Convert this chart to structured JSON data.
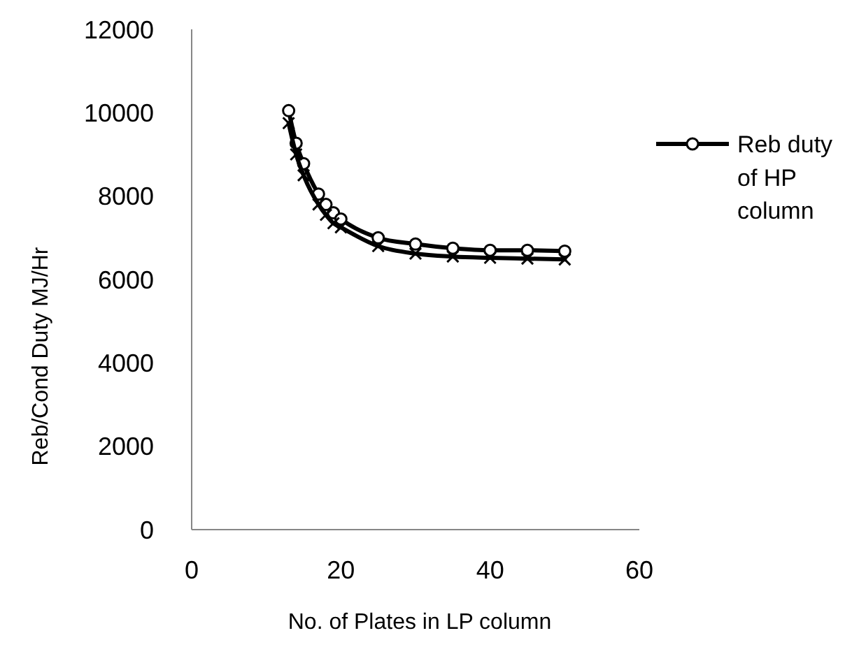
{
  "chart_data": {
    "type": "line",
    "xlabel": "No. of Plates in LP column",
    "ylabel": "Reb/Cond Duty MJ/Hr",
    "x": [
      13,
      14,
      15,
      17,
      18,
      19,
      20,
      25,
      30,
      35,
      40,
      45,
      50
    ],
    "xlim": [
      0,
      60
    ],
    "xticks": [
      0,
      20,
      40,
      60
    ],
    "ylim": [
      0,
      12000
    ],
    "yticks": [
      0,
      2000,
      4000,
      6000,
      8000,
      10000,
      12000
    ],
    "grid": false,
    "legend": "right",
    "series": [
      {
        "name": "Reb duty of HP column",
        "color": "#000000",
        "marker": "circle",
        "values": [
          10050,
          9270,
          8780,
          8050,
          7800,
          7600,
          7450,
          7000,
          6850,
          6750,
          6700,
          6700,
          6680
        ]
      },
      {
        "color": "#000000",
        "marker": "cross",
        "values": [
          9750,
          9000,
          8500,
          7800,
          7550,
          7350,
          7250,
          6800,
          6620,
          6550,
          6520,
          6500,
          6480
        ]
      }
    ]
  }
}
